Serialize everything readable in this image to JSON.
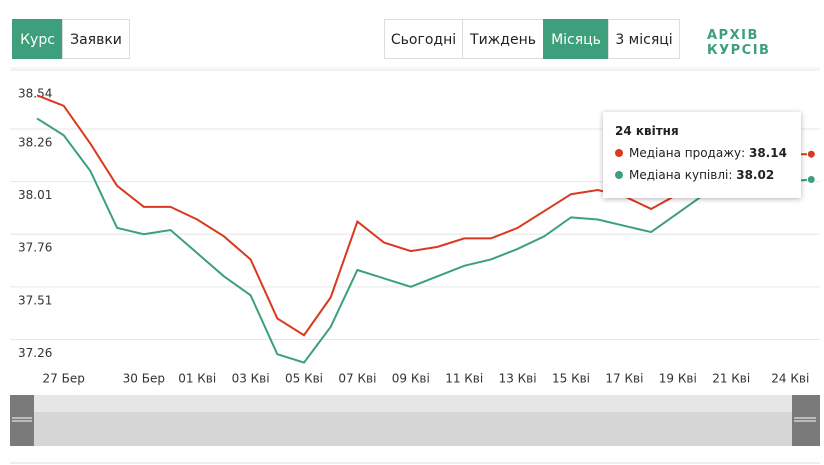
{
  "tabs": [
    "Курс",
    "Заявки"
  ],
  "ranges": [
    "Сьогодні",
    "Тиждень",
    "Місяць",
    "3 місяці"
  ],
  "archive_link": "АРХІВ КУРСІВ",
  "tooltip": {
    "title": "24 квітня",
    "labels": [
      "Медіана продажу:",
      "Медіана купівлі:"
    ]
  },
  "chart_data": {
    "type": "line",
    "categories": [
      null,
      "27 Бер",
      null,
      null,
      "30 Бер",
      null,
      "01 Кві",
      null,
      "03 Кві",
      null,
      "05 Кві",
      null,
      "07 Кві",
      null,
      "09 Кві",
      null,
      "11 Кві",
      null,
      "13 Кві",
      null,
      "15 Кві",
      null,
      "17 Кві",
      null,
      "19 Кві",
      null,
      "21 Кві",
      null,
      null,
      "24 Кві"
    ],
    "series": [
      {
        "color": "#d9391f",
        "values": [
          38.42,
          38.37,
          38.19,
          37.99,
          37.89,
          37.89,
          37.83,
          37.75,
          37.64,
          37.36,
          37.28,
          37.46,
          37.82,
          37.72,
          37.68,
          37.7,
          37.74,
          37.74,
          37.79,
          37.87,
          37.95,
          37.97,
          37.94,
          37.88,
          37.95,
          38.02,
          38.07,
          38.1,
          38.14,
          38.14
        ]
      },
      {
        "color": "#3d9f7c",
        "values": [
          38.31,
          38.23,
          38.06,
          37.79,
          37.76,
          37.78,
          37.67,
          37.56,
          37.47,
          37.19,
          37.15,
          37.32,
          37.59,
          37.55,
          37.51,
          37.56,
          37.61,
          37.64,
          37.69,
          37.75,
          37.84,
          37.83,
          37.8,
          37.77,
          37.86,
          37.95,
          37.98,
          38.0,
          38.01,
          38.02
        ]
      }
    ],
    "ylim": [
      37.02,
      38.54
    ],
    "yticks": [
      37.26,
      37.51,
      37.76,
      38.01,
      38.26,
      38.54
    ],
    "grid": true
  }
}
